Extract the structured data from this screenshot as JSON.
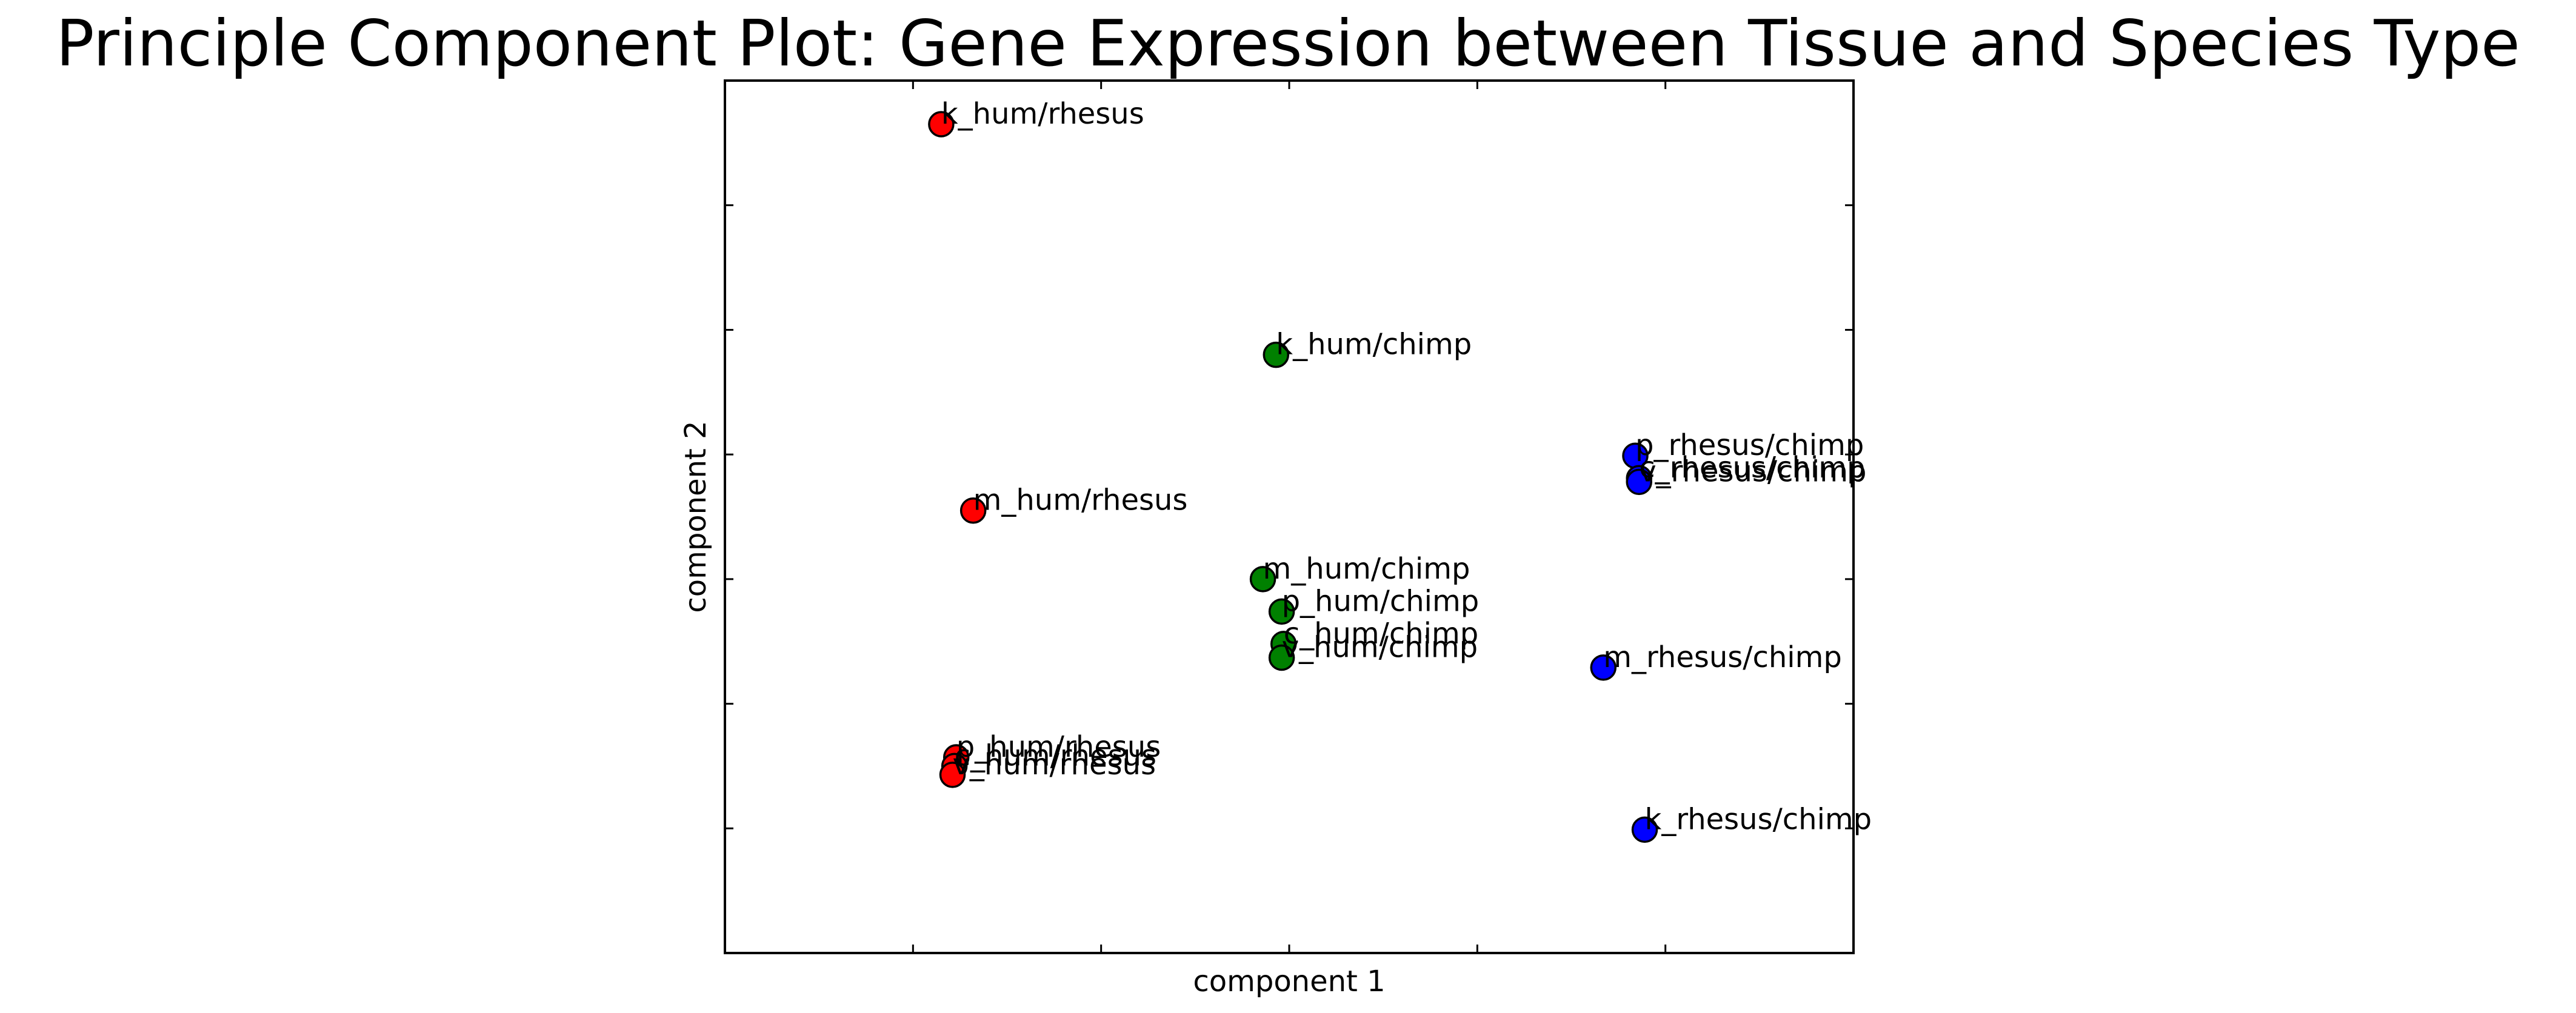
{
  "chart_data": {
    "type": "scatter",
    "title": "Principle Component Plot: Gene Expression between Tissue and Species Type",
    "xlabel": "component 1",
    "ylabel": "component 2",
    "xlim": [
      0,
      6
    ],
    "ylim": [
      0,
      7
    ],
    "grid": false,
    "legend": "none",
    "colors": {
      "hum/rhesus": "#ff0000",
      "hum/chimp": "#008000",
      "rhesus/chimp": "#0000ff"
    },
    "points": [
      {
        "label": "k_hum/rhesus",
        "group": "hum/rhesus",
        "x": 1.15,
        "y": 6.65
      },
      {
        "label": "m_hum/rhesus",
        "group": "hum/rhesus",
        "x": 1.32,
        "y": 3.55
      },
      {
        "label": "p_hum/rhesus",
        "group": "hum/rhesus",
        "x": 1.23,
        "y": 1.57
      },
      {
        "label": "c_hum/rhesus",
        "group": "hum/rhesus",
        "x": 1.22,
        "y": 1.5
      },
      {
        "label": "v_hum/rhesus",
        "group": "hum/rhesus",
        "x": 1.21,
        "y": 1.43
      },
      {
        "label": "k_hum/chimp",
        "group": "hum/chimp",
        "x": 2.93,
        "y": 4.8
      },
      {
        "label": "m_hum/chimp",
        "group": "hum/chimp",
        "x": 2.86,
        "y": 3.0
      },
      {
        "label": "p_hum/chimp",
        "group": "hum/chimp",
        "x": 2.96,
        "y": 2.74
      },
      {
        "label": "c_hum/chimp",
        "group": "hum/chimp",
        "x": 2.97,
        "y": 2.48
      },
      {
        "label": "v_hum/chimp",
        "group": "hum/chimp",
        "x": 2.96,
        "y": 2.37
      },
      {
        "label": "p_rhesus/chimp",
        "group": "rhesus/chimp",
        "x": 4.84,
        "y": 3.99
      },
      {
        "label": "c_rhesus/chimp",
        "group": "rhesus/chimp",
        "x": 4.86,
        "y": 3.81
      },
      {
        "label": "v_rhesus/chimp",
        "group": "rhesus/chimp",
        "x": 4.86,
        "y": 3.78
      },
      {
        "label": "m_rhesus/chimp",
        "group": "rhesus/chimp",
        "x": 4.67,
        "y": 2.29
      },
      {
        "label": "k_rhesus/chimp",
        "group": "rhesus/chimp",
        "x": 4.89,
        "y": 0.99
      }
    ]
  }
}
